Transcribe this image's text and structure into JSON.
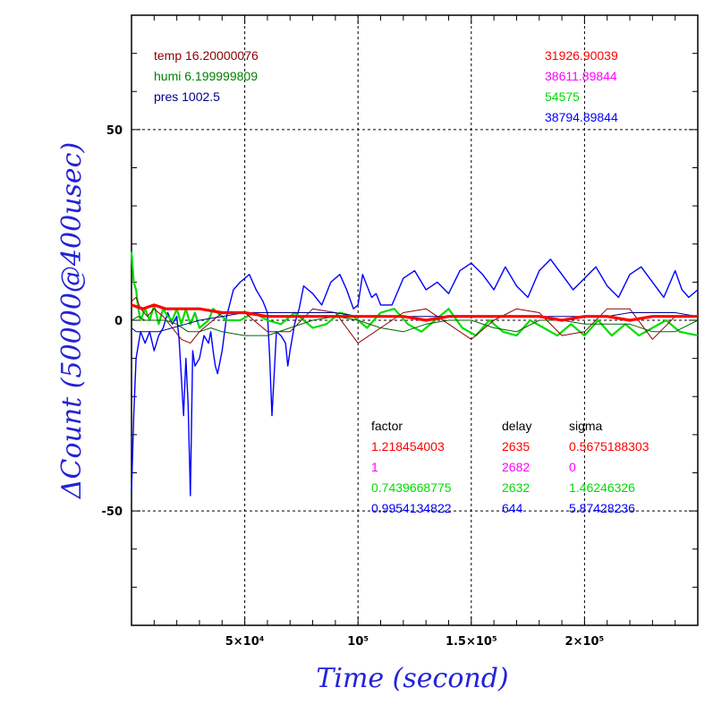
{
  "chart_data": {
    "type": "line",
    "xlabel": "Time (second)",
    "ylabel": "ΔCount (50000@400usec)",
    "xlim": [
      0,
      250000
    ],
    "ylim": [
      -80,
      80
    ],
    "x_ticks": [
      {
        "value": 50000,
        "label": "5×10⁴"
      },
      {
        "value": 100000,
        "label": "10⁵"
      },
      {
        "value": 150000,
        "label": "1.5×10⁵"
      },
      {
        "value": 200000,
        "label": "2×10⁵"
      }
    ],
    "y_ticks": [
      {
        "value": 50,
        "label": "50"
      },
      {
        "value": 0,
        "label": "0"
      },
      {
        "value": -50,
        "label": "-50"
      }
    ],
    "grid": true,
    "env_labels": [
      {
        "text": "temp 16.20000076",
        "color": "#8b0000"
      },
      {
        "text": "humi 6.199999809",
        "color": "#008000"
      },
      {
        "text": "pres 1002.5",
        "color": "#00008b"
      }
    ],
    "count_labels": [
      {
        "text": "31926.90039",
        "color": "#ff0000"
      },
      {
        "text": "38611.89844",
        "color": "#ff00ff"
      },
      {
        "text": "54575",
        "color": "#00dd00"
      },
      {
        "text": "38794.89844",
        "color": "#0000ff"
      }
    ],
    "stats_headers": [
      "factor",
      "delay",
      "sigma"
    ],
    "stats_rows": [
      {
        "factor": "1.218454003",
        "delay": "2635",
        "sigma": "0.5675188303",
        "color": "#ff0000"
      },
      {
        "factor": "1",
        "delay": "2682",
        "sigma": "0",
        "color": "#ff00ff"
      },
      {
        "factor": "0.7439668775",
        "delay": "2632",
        "sigma": "1.46246326",
        "color": "#00dd00"
      },
      {
        "factor": "0.9954134822",
        "delay": "644",
        "sigma": "5.87428236",
        "color": "#0000ff"
      }
    ],
    "series": [
      {
        "color": "#0000ff",
        "width": 1.4,
        "x": [
          0,
          1000,
          2000,
          4000,
          6000,
          8000,
          10000,
          12000,
          14000,
          16000,
          18000,
          20000,
          21000,
          22000,
          23000,
          24000,
          25000,
          26000,
          27000,
          28000,
          30000,
          32000,
          34000,
          35000,
          36000,
          37000,
          38000,
          40000,
          42000,
          45000,
          48000,
          52000,
          55000,
          58000,
          60000,
          61000,
          62000,
          64000,
          66000,
          68000,
          69000,
          70000,
          72000,
          74000,
          76000,
          80000,
          84000,
          88000,
          92000,
          95000,
          98000,
          100000,
          102000,
          104000,
          106000,
          108000,
          110000,
          115000,
          120000,
          125000,
          130000,
          135000,
          140000,
          145000,
          150000,
          155000,
          160000,
          165000,
          170000,
          175000,
          180000,
          185000,
          190000,
          195000,
          200000,
          205000,
          210000,
          215000,
          220000,
          225000,
          230000,
          235000,
          240000,
          243000,
          246000,
          250000
        ],
        "y": [
          -45,
          -25,
          -10,
          -3,
          -6,
          -3,
          -8,
          -4,
          -2,
          2,
          -1,
          1,
          -5,
          -15,
          -25,
          -10,
          -22,
          -46,
          -8,
          -12,
          -10,
          -4,
          -6,
          -3,
          -8,
          -12,
          -14,
          -8,
          1,
          8,
          10,
          12,
          8,
          5,
          2,
          -10,
          -25,
          -3,
          -4,
          -6,
          -12,
          -8,
          -1,
          3,
          9,
          7,
          4,
          10,
          12,
          8,
          3,
          4,
          12,
          9,
          6,
          7,
          4,
          4,
          11,
          13,
          8,
          10,
          7,
          13,
          15,
          12,
          8,
          14,
          9,
          6,
          13,
          16,
          12,
          8,
          11,
          14,
          9,
          6,
          12,
          14,
          10,
          6,
          13,
          8,
          6,
          8
        ]
      },
      {
        "color": "#00dd00",
        "width": 2.2,
        "x": [
          0,
          1000,
          2000,
          3000,
          4000,
          6000,
          8000,
          10000,
          12000,
          14000,
          16000,
          18000,
          20000,
          22000,
          24000,
          26000,
          28000,
          30000,
          34000,
          36000,
          38000,
          42000,
          48000,
          54000,
          60000,
          66000,
          72000,
          80000,
          86000,
          92000,
          98000,
          104000,
          110000,
          116000,
          122000,
          128000,
          134000,
          140000,
          146000,
          152000,
          158000,
          164000,
          170000,
          176000,
          182000,
          188000,
          194000,
          200000,
          206000,
          212000,
          218000,
          224000,
          230000,
          236000,
          242000,
          250000
        ],
        "y": [
          18,
          10,
          8,
          3,
          0,
          3,
          0,
          4,
          -1,
          3,
          1,
          0,
          3,
          -1,
          3,
          -1,
          2,
          -2,
          0,
          3,
          2,
          0,
          0,
          2,
          0,
          -1,
          2,
          -2,
          -1,
          2,
          1,
          -2,
          2,
          3,
          -1,
          -3,
          0,
          3,
          -2,
          -4,
          0,
          -3,
          -4,
          0,
          -2,
          -4,
          -1,
          -4,
          0,
          -4,
          -1,
          -4,
          -2,
          0,
          -3,
          -4
        ]
      },
      {
        "color": "#8b0000",
        "width": 1,
        "x": [
          0,
          2000,
          4000,
          7000,
          10000,
          14000,
          18000,
          22000,
          26000,
          30000,
          40000,
          50000,
          60000,
          70000,
          80000,
          90000,
          100000,
          110000,
          120000,
          130000,
          140000,
          150000,
          160000,
          170000,
          180000,
          190000,
          200000,
          210000,
          220000,
          230000,
          240000,
          250000
        ],
        "y": [
          5,
          6,
          3,
          1,
          3,
          1,
          -2,
          -5,
          -6,
          -3,
          2,
          2,
          -3,
          -3,
          3,
          2,
          -6,
          -2,
          2,
          3,
          -1,
          -5,
          0,
          3,
          2,
          -4,
          -3,
          3,
          3,
          -5,
          1,
          1
        ]
      },
      {
        "color": "#006400",
        "width": 1,
        "x": [
          0,
          3000,
          6000,
          10000,
          15000,
          20000,
          25000,
          30000,
          35000,
          40000,
          50000,
          60000,
          70000,
          80000,
          90000,
          100000,
          110000,
          120000,
          130000,
          140000,
          150000,
          160000,
          170000,
          180000,
          190000,
          200000,
          210000,
          220000,
          230000,
          240000,
          250000
        ],
        "y": [
          0,
          1,
          0,
          0,
          0,
          -1,
          -3,
          -3,
          -2,
          -3,
          -4,
          -4,
          -2,
          0,
          1,
          0,
          -2,
          -3,
          -1,
          0,
          0,
          -2,
          -3,
          0,
          0,
          -1,
          -1,
          -1,
          -3,
          -3,
          0
        ]
      },
      {
        "color": "#00008b",
        "width": 1,
        "x": [
          0,
          2000,
          5000,
          8000,
          12000,
          18000,
          24000,
          30000,
          40000,
          50000,
          60000,
          70000,
          80000,
          90000,
          100000,
          110000,
          120000,
          130000,
          140000,
          150000,
          160000,
          170000,
          180000,
          190000,
          200000,
          210000,
          220000,
          230000,
          240000,
          250000
        ],
        "y": [
          -2,
          -3,
          -3,
          -3,
          -3,
          -2,
          -1,
          0,
          1,
          2,
          2,
          2,
          2,
          2,
          1,
          1,
          1,
          1,
          1,
          1,
          1,
          1,
          1,
          1,
          1,
          1,
          2,
          2,
          2,
          1
        ]
      },
      {
        "color": "#ff0000",
        "width": 3.2,
        "x": [
          0,
          5000,
          10000,
          15000,
          20000,
          30000,
          40000,
          50000,
          60000,
          70000,
          80000,
          90000,
          100000,
          110000,
          120000,
          130000,
          140000,
          150000,
          160000,
          170000,
          180000,
          190000,
          200000,
          210000,
          220000,
          230000,
          240000,
          250000
        ],
        "y": [
          4,
          3,
          4,
          3,
          3,
          3,
          2,
          2,
          1,
          1,
          1,
          1,
          1,
          1,
          1,
          0,
          1,
          1,
          1,
          1,
          1,
          0,
          1,
          1,
          0,
          1,
          1,
          1
        ]
      }
    ]
  }
}
